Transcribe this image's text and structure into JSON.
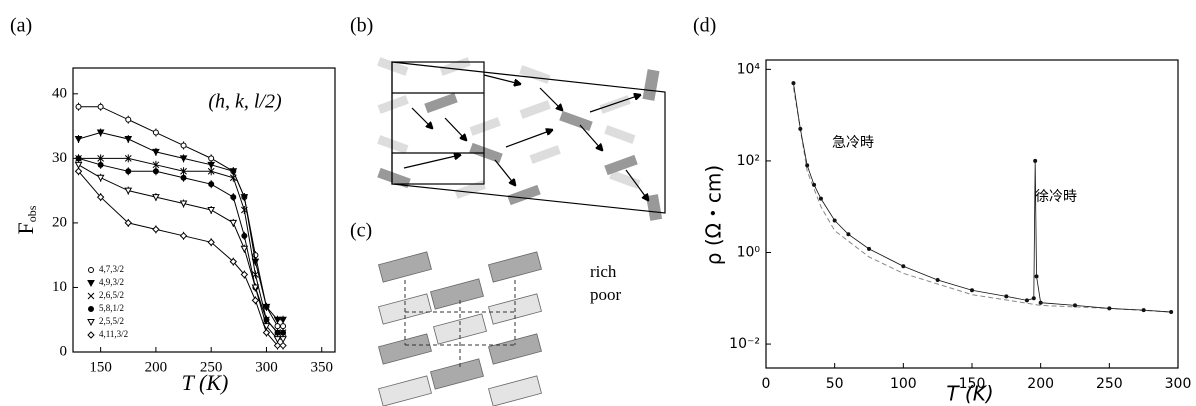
{
  "chart_data": [
    {
      "type": "line",
      "label": "(a)",
      "xlabel": "T (K)",
      "ylabel": "F",
      "ylabel_sub": "obs",
      "annotation": "(h, k, l/2)",
      "x": [
        130,
        150,
        175,
        200,
        225,
        250,
        270,
        280,
        290,
        300,
        310,
        315
      ],
      "series": [
        {
          "name": "4,7,3/2",
          "color": "#000",
          "marker": "circle",
          "values": [
            38,
            38,
            36,
            34,
            32,
            30,
            28,
            24,
            15,
            7,
            4,
            4
          ]
        },
        {
          "name": "4,9,3/2",
          "color": "#000",
          "marker": "triangle-down",
          "values": [
            33,
            34,
            33,
            31,
            30,
            29,
            28,
            24,
            14,
            7,
            5,
            5
          ]
        },
        {
          "name": "2,6,5/2",
          "color": "#000",
          "marker": "cross",
          "values": [
            30,
            30,
            30,
            29,
            28,
            28,
            27,
            22,
            12,
            5,
            3,
            3
          ]
        },
        {
          "name": "5,8,1/2",
          "color": "#000",
          "marker": "filled-circle",
          "values": [
            30,
            29,
            28,
            28,
            27,
            26,
            24,
            18,
            10,
            5,
            3,
            3
          ]
        },
        {
          "name": "2,5,5/2",
          "color": "#000",
          "marker": "triangle-down-open",
          "values": [
            29,
            27,
            25,
            24,
            23,
            22,
            20,
            16,
            10,
            4,
            2,
            2
          ]
        },
        {
          "name": "4,11,3/2",
          "color": "#000",
          "marker": "diamond",
          "values": [
            28,
            24,
            20,
            19,
            18,
            17,
            14,
            12,
            8,
            3,
            1,
            1
          ]
        }
      ],
      "xlim": [
        125,
        362
      ],
      "ylim": [
        0,
        44
      ],
      "xticks": [
        150,
        200,
        250,
        300,
        350
      ],
      "yticks": [
        0,
        10,
        20,
        30,
        40
      ],
      "legend": "lower-left"
    },
    {
      "type": "line",
      "label": "(d)",
      "xlabel": "T (K)",
      "ylabel": "ρ (Ω・cm)",
      "log_y": true,
      "series": [
        {
          "name": "急冷時",
          "color": "#888",
          "style": "dashed",
          "x": [
            20,
            30,
            40,
            50,
            75,
            100,
            150,
            200,
            250,
            295
          ],
          "values": [
            4000,
            60,
            10,
            3,
            0.8,
            0.35,
            0.12,
            0.07,
            0.06,
            0.05
          ]
        },
        {
          "name": "徐冷時",
          "color": "#111",
          "style": "dots",
          "x": [
            20,
            25,
            30,
            35,
            40,
            50,
            60,
            75,
            100,
            125,
            150,
            175,
            190,
            195,
            196,
            197,
            200,
            225,
            250,
            275,
            295
          ],
          "values": [
            5000,
            500,
            80,
            30,
            15,
            5,
            2.5,
            1.2,
            0.5,
            0.25,
            0.15,
            0.11,
            0.09,
            0.1,
            100,
            0.3,
            0.08,
            0.07,
            0.06,
            0.055,
            0.05
          ]
        }
      ],
      "xlim": [
        0,
        300
      ],
      "ylim": [
        0.003,
        16000
      ],
      "xticks": [
        0,
        50,
        100,
        150,
        200,
        250,
        300
      ],
      "yticks": [
        {
          "value": 0.01,
          "label": "10⁻²"
        },
        {
          "value": 1,
          "label": "10⁰"
        },
        {
          "value": 100,
          "label": "10²"
        },
        {
          "value": 10000,
          "label": "10⁴"
        }
      ]
    }
  ],
  "diagrams": [
    {
      "label": "(b)"
    },
    {
      "label": "(c)",
      "texts": [
        "rich",
        "poor"
      ]
    }
  ]
}
